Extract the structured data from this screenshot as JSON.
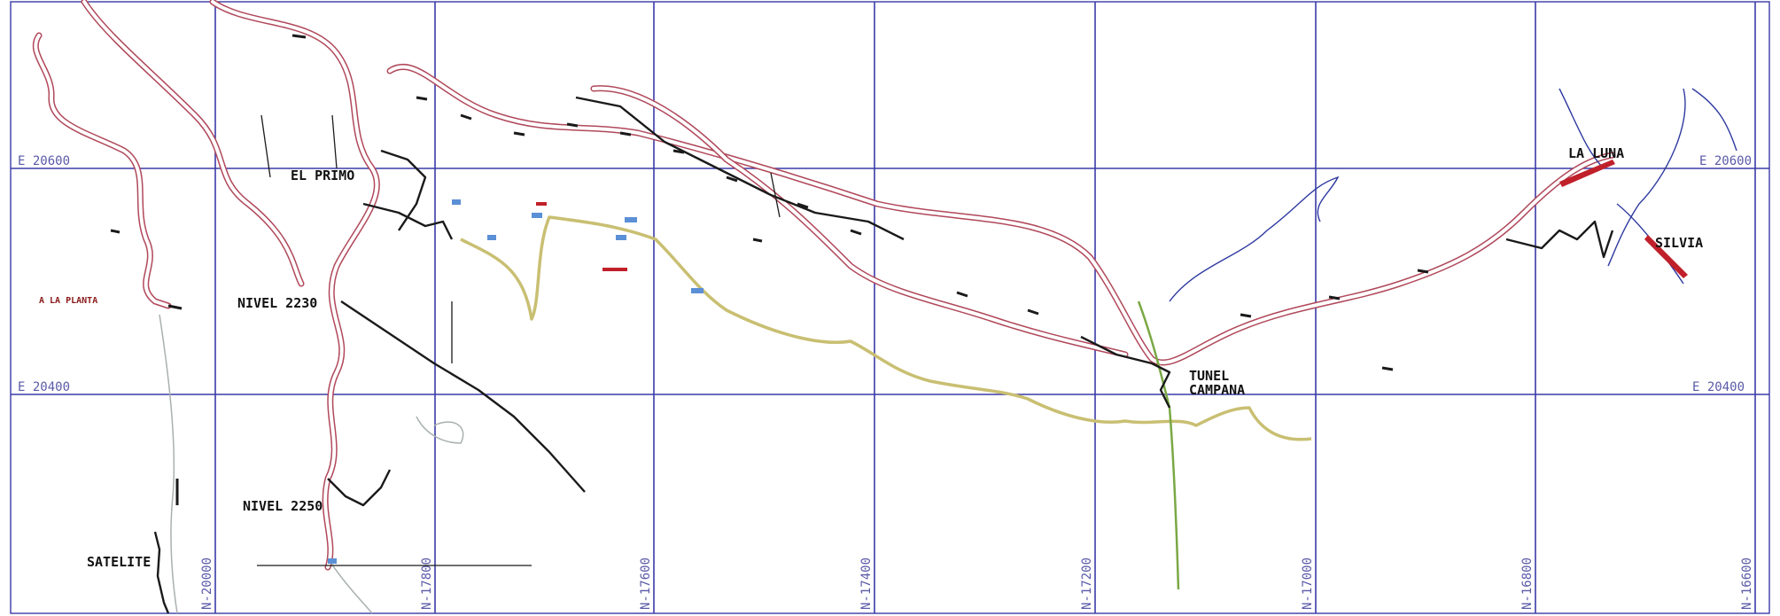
{
  "grid": {
    "easting_labels": {
      "e20600_left": "E 20600",
      "e20600_right": "E 20600",
      "e20400_left": "E 20400",
      "e20400_right": "E 20400"
    },
    "northing_labels": [
      "N-20000",
      "N-17800",
      "N-17600",
      "N-17400",
      "N-17200",
      "N-17000",
      "N-16800",
      "N-16600"
    ]
  },
  "places": {
    "el_primo": "EL PRIMO",
    "a_la_planta": "A LA PLANTA",
    "nivel_2230": "NIVEL 2230",
    "nivel_2250": "NIVEL 2250",
    "satelite": "SATELITE",
    "tunel": "TUNEL",
    "campana": "CAMPANA",
    "la_luna": "LA LUNA",
    "silvia": "SILVIA"
  },
  "colors": {
    "grid": "#3a3aa8",
    "road": "#b0485a",
    "tunnel": "#1a1a1a",
    "yellow_route": "#c9bf72",
    "green_route": "#7aa845",
    "river": "#2e3aa0"
  }
}
